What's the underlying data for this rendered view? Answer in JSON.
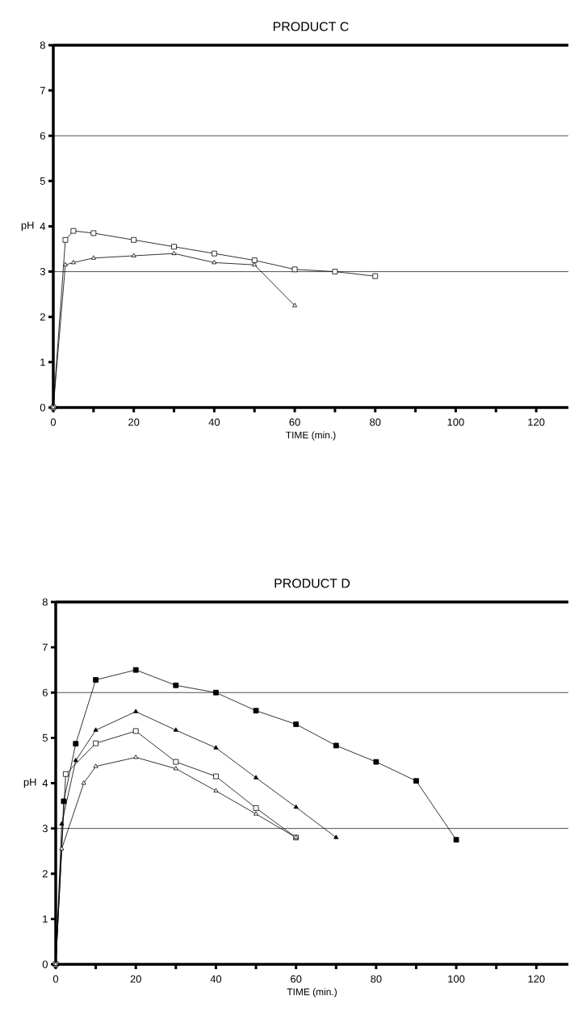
{
  "chart_data": [
    {
      "type": "line",
      "title": "PRODUCT C",
      "xlabel": "TIME (min.)",
      "ylabel": "pH",
      "xlim": [
        0,
        128
      ],
      "ylim": [
        0,
        8
      ],
      "xticks": [
        0,
        {
          "value": 10,
          "label": null
        },
        20,
        {
          "value": 30,
          "label": null
        },
        40,
        {
          "value": 50,
          "label": null
        },
        60,
        {
          "value": 70,
          "label": null
        },
        80,
        {
          "value": 90,
          "label": null
        },
        100,
        {
          "value": 110,
          "label": null
        },
        120
      ],
      "yticks": [
        0,
        1,
        2,
        3,
        4,
        5,
        6,
        7,
        8
      ],
      "grid": false,
      "line_style": "solid",
      "ref_lines": [
        {
          "axis": "y",
          "value": 3,
          "color": "#000000"
        },
        {
          "axis": "y",
          "value": 6,
          "color": "#000000"
        }
      ],
      "series": [
        {
          "color": "#ffffff",
          "marker": "square",
          "x": [
            0,
            3,
            5,
            10,
            20,
            30,
            40,
            50,
            60,
            70,
            80
          ],
          "values": [
            0,
            3.7,
            3.9,
            3.85,
            3.7,
            3.55,
            3.4,
            3.25,
            3.05,
            3.0,
            2.9
          ]
        },
        {
          "color": "#ffffff",
          "marker": "triangle",
          "x": [
            0,
            3,
            5,
            10,
            20,
            30,
            40,
            50,
            60
          ],
          "values": [
            0,
            3.15,
            3.2,
            3.3,
            3.35,
            3.4,
            3.2,
            3.15,
            2.25
          ]
        }
      ]
    },
    {
      "type": "line",
      "title": "PRODUCT D",
      "xlabel": "TIME (min.)",
      "ylabel": "pH",
      "xlim": [
        0,
        128
      ],
      "ylim": [
        0,
        8
      ],
      "xticks": [
        0,
        {
          "value": 10,
          "label": null
        },
        20,
        {
          "value": 30,
          "label": null
        },
        40,
        {
          "value": 50,
          "label": null
        },
        60,
        {
          "value": 70,
          "label": null
        },
        80,
        {
          "value": 90,
          "label": null
        },
        100,
        {
          "value": 110,
          "label": null
        },
        120
      ],
      "yticks": [
        0,
        1,
        2,
        3,
        4,
        5,
        6,
        7,
        8
      ],
      "grid": false,
      "line_style": "solid",
      "ref_lines": [
        {
          "axis": "y",
          "value": 3,
          "color": "#000000"
        },
        {
          "axis": "y",
          "value": 6,
          "color": "#000000"
        }
      ],
      "series": [
        {
          "color": "#000000",
          "marker": "square",
          "x": [
            0,
            2,
            5,
            10,
            20,
            30,
            40,
            50,
            60,
            70,
            80,
            90,
            100
          ],
          "values": [
            0,
            3.6,
            4.87,
            6.28,
            6.5,
            6.16,
            6.0,
            5.6,
            5.3,
            4.83,
            4.47,
            4.05,
            2.75
          ]
        },
        {
          "color": "#ffffff",
          "marker": "square",
          "x": [
            0,
            2.5,
            10,
            20,
            30,
            40,
            50,
            60
          ],
          "values": [
            0,
            4.2,
            4.88,
            5.15,
            4.47,
            4.15,
            3.45,
            2.8
          ]
        },
        {
          "color": "#000000",
          "marker": "triangle",
          "x": [
            0,
            1.5,
            5,
            10,
            20,
            30,
            40,
            50,
            60,
            70
          ],
          "values": [
            0,
            3.1,
            4.5,
            5.17,
            5.58,
            5.17,
            4.78,
            4.12,
            3.47,
            2.8
          ]
        },
        {
          "color": "#ffffff",
          "marker": "triangle",
          "x": [
            0,
            1.5,
            7,
            10,
            20,
            30,
            40,
            50,
            60
          ],
          "values": [
            0,
            2.55,
            4.0,
            4.37,
            4.57,
            4.32,
            3.83,
            3.32,
            2.8
          ]
        }
      ]
    }
  ]
}
